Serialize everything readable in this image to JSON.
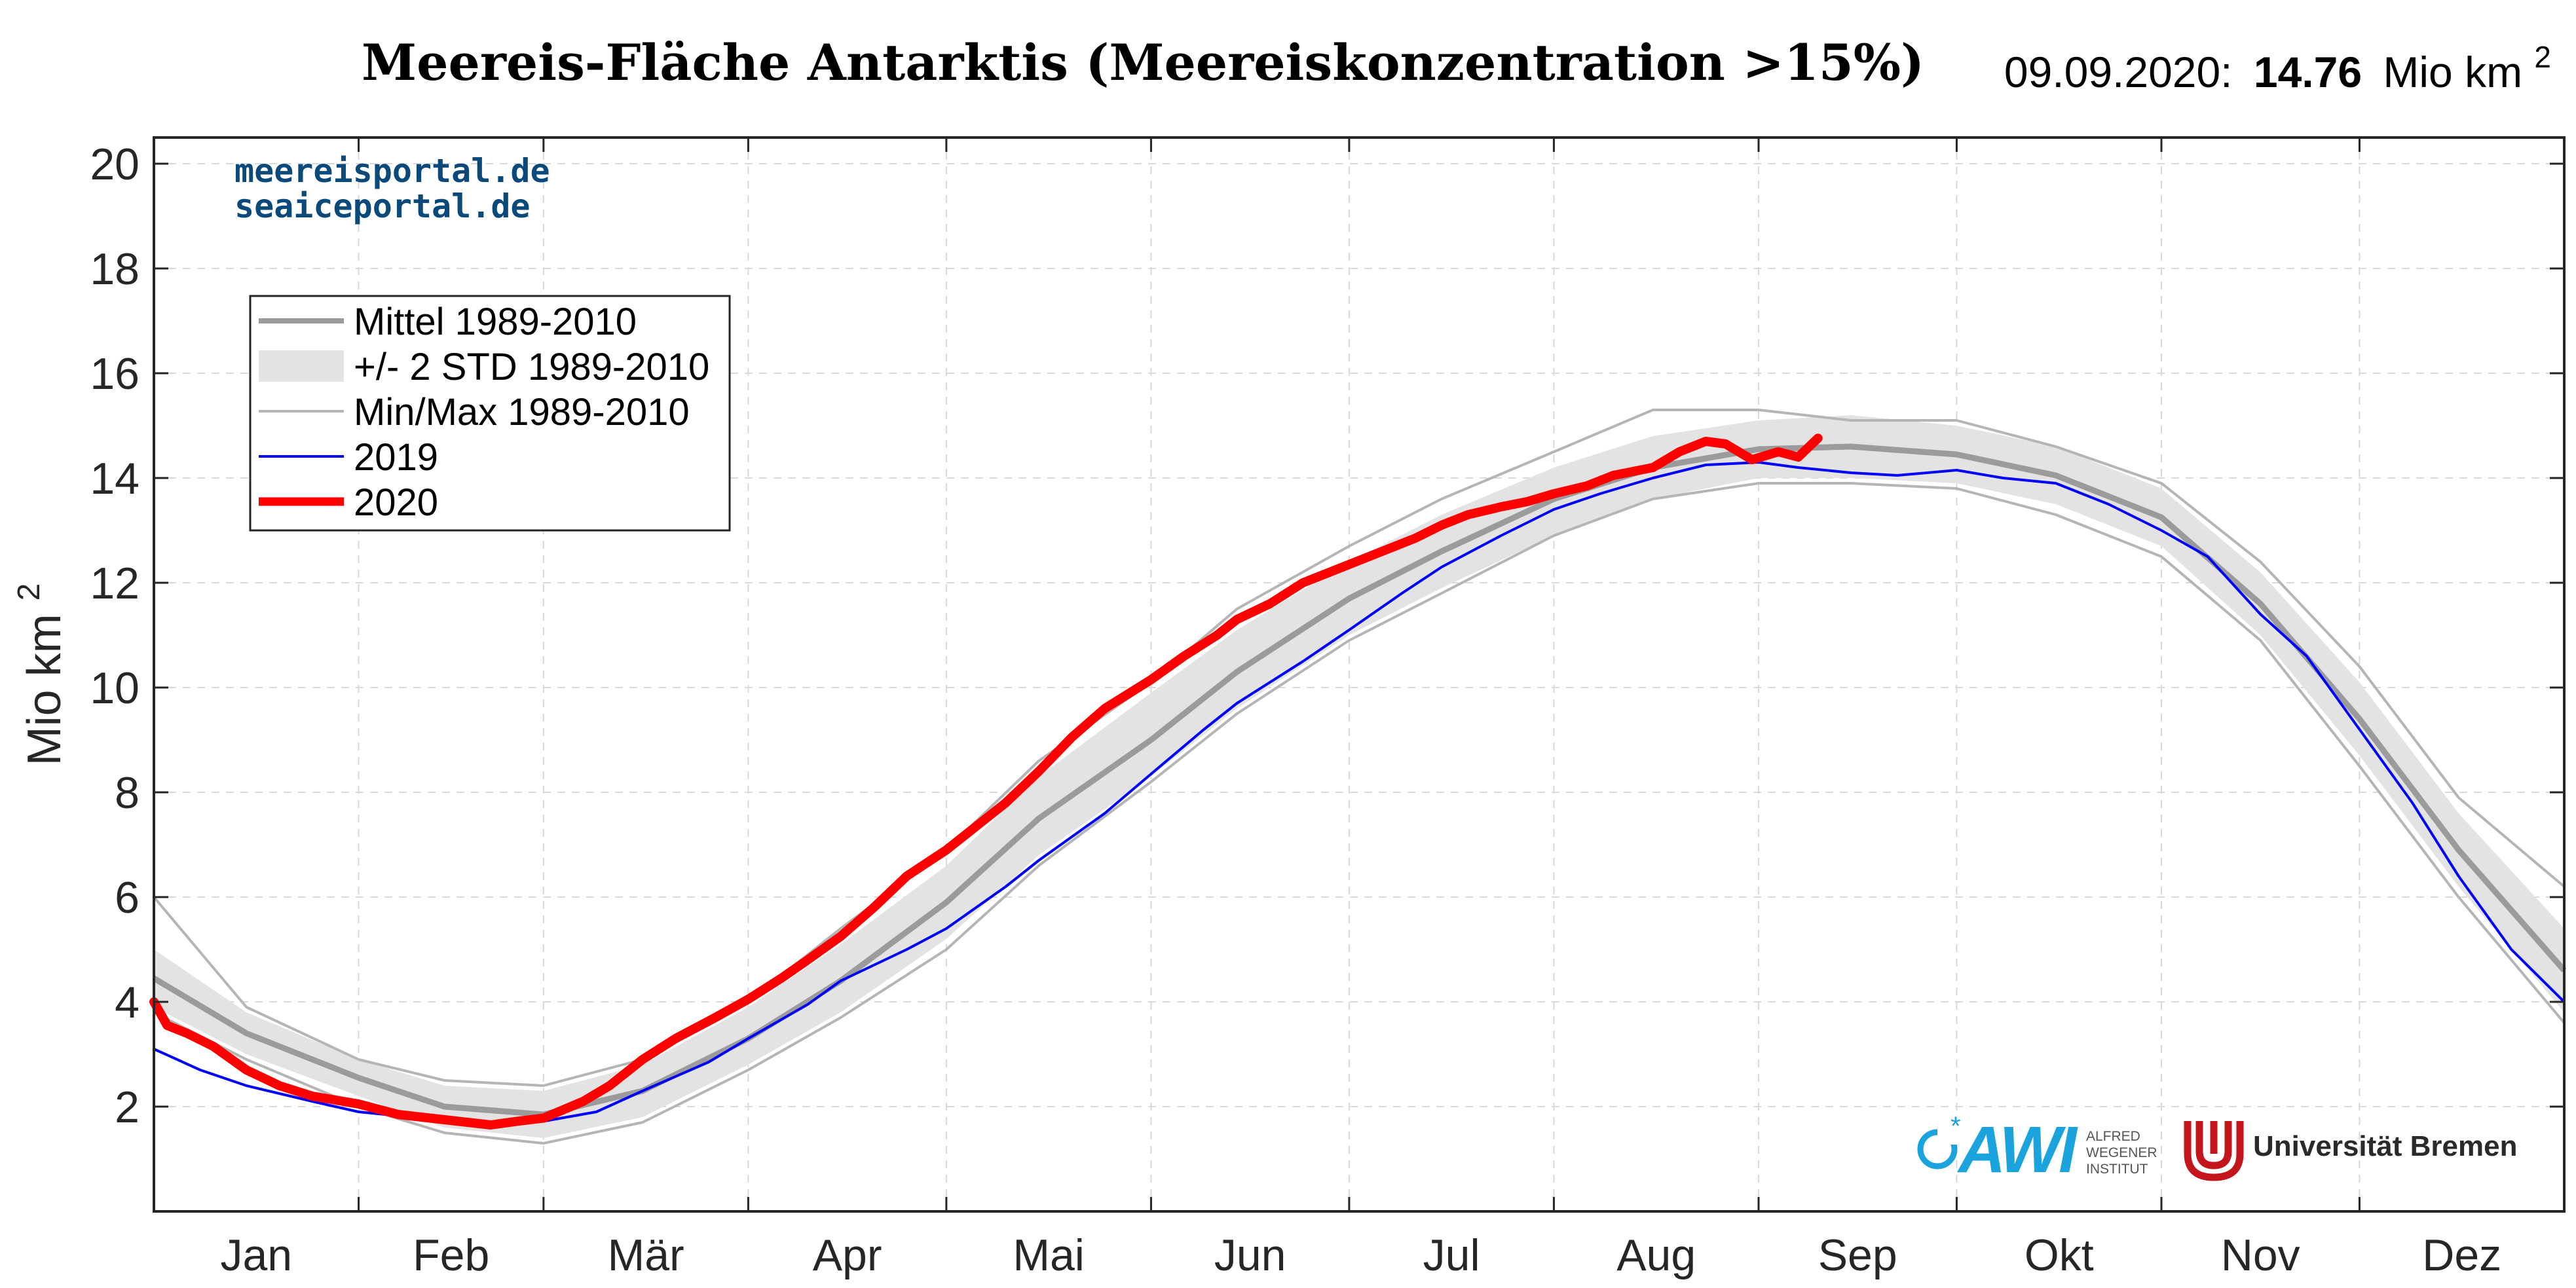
{
  "header": {
    "title": "Meereis-Fläche Antarktis (Meereiskonzentration >15%)",
    "date_label": "09.09.2020:",
    "value": "14.76",
    "unit": "Mio km",
    "unit_exp": "2"
  },
  "watermark": {
    "line1": "meereisportal.de",
    "line2": "seaiceportal.de",
    "color": "#0a4a7a"
  },
  "logos": {
    "awi_text": "AWI",
    "awi_lines": [
      "ALFRED",
      "WEGENER",
      "INSTITUT"
    ],
    "awi_color": "#1aa3dc",
    "uni_text": "Universität Bremen",
    "uni_color": "#c4151c"
  },
  "chart_data": {
    "type": "line",
    "title": "Meereis-Fläche Antarktis (Meereiskonzentration >15%)",
    "ylabel": "Mio km",
    "ylabel_exp": "2",
    "xlabel": "",
    "xlim": [
      1,
      366
    ],
    "ylim": [
      0,
      20.5
    ],
    "yticks": [
      2,
      4,
      6,
      8,
      10,
      12,
      14,
      16,
      18,
      20
    ],
    "month_labels": [
      "Jan",
      "Feb",
      "Mär",
      "Apr",
      "Mai",
      "Jun",
      "Jul",
      "Aug",
      "Sep",
      "Okt",
      "Nov",
      "Dez"
    ],
    "month_boundaries": [
      1,
      32,
      60,
      91,
      121,
      152,
      182,
      213,
      244,
      274,
      305,
      335,
      366
    ],
    "grid": true,
    "legend": {
      "position": "top-left",
      "entries": [
        {
          "label": "Mittel 1989-2010",
          "style": "mean",
          "color": "#9b9b9b"
        },
        {
          "label": "+/- 2 STD 1989-2010",
          "style": "band",
          "color": "#e3e3e3"
        },
        {
          "label": "Min/Max 1989-2010",
          "style": "minmax",
          "color": "#b5b5b5"
        },
        {
          "label": "2019",
          "style": "line",
          "color": "#0000ff"
        },
        {
          "label": "2020",
          "style": "thick",
          "color": "#ff0000"
        }
      ]
    },
    "series": [
      {
        "name": "Mittel 1989-2010",
        "x": [
          1,
          15,
          32,
          45,
          60,
          75,
          91,
          105,
          121,
          135,
          152,
          165,
          182,
          196,
          213,
          228,
          244,
          258,
          274,
          289,
          305,
          320,
          335,
          350,
          366
        ],
        "values": [
          4.45,
          3.4,
          2.55,
          2.0,
          1.85,
          2.3,
          3.3,
          4.4,
          5.9,
          7.5,
          9.0,
          10.3,
          11.7,
          12.6,
          13.6,
          14.2,
          14.55,
          14.6,
          14.45,
          14.05,
          13.25,
          11.6,
          9.4,
          6.9,
          4.6
        ]
      },
      {
        "name": "STD upper",
        "x": [
          1,
          15,
          32,
          45,
          60,
          75,
          91,
          105,
          121,
          135,
          152,
          165,
          182,
          196,
          213,
          228,
          244,
          258,
          274,
          289,
          305,
          320,
          335,
          350,
          366
        ],
        "values": [
          5.0,
          3.8,
          2.9,
          2.4,
          2.3,
          2.8,
          3.9,
          5.1,
          6.6,
          8.3,
          9.9,
          11.1,
          12.4,
          13.3,
          14.2,
          14.8,
          15.1,
          15.2,
          15.0,
          14.6,
          13.8,
          12.2,
          10.1,
          7.6,
          5.4
        ]
      },
      {
        "name": "STD lower",
        "x": [
          1,
          15,
          32,
          45,
          60,
          75,
          91,
          105,
          121,
          135,
          152,
          165,
          182,
          196,
          213,
          228,
          244,
          258,
          274,
          289,
          305,
          320,
          335,
          350,
          366
        ],
        "values": [
          3.9,
          3.0,
          2.2,
          1.6,
          1.4,
          1.8,
          2.8,
          3.8,
          5.2,
          6.8,
          8.3,
          9.6,
          11.0,
          11.9,
          12.9,
          13.6,
          14.0,
          14.0,
          13.9,
          13.5,
          12.7,
          11.0,
          8.7,
          6.2,
          3.8
        ]
      },
      {
        "name": "Min/Max upper",
        "x": [
          1,
          15,
          32,
          45,
          60,
          75,
          91,
          105,
          121,
          135,
          152,
          165,
          182,
          196,
          213,
          228,
          244,
          258,
          274,
          289,
          305,
          320,
          335,
          350,
          366
        ],
        "values": [
          6.0,
          3.9,
          2.9,
          2.5,
          2.4,
          2.9,
          4.0,
          5.4,
          6.9,
          8.6,
          10.1,
          11.5,
          12.7,
          13.6,
          14.5,
          15.3,
          15.3,
          15.1,
          15.1,
          14.6,
          13.9,
          12.4,
          10.4,
          7.9,
          6.2
        ]
      },
      {
        "name": "Min/Max lower",
        "x": [
          1,
          15,
          32,
          45,
          60,
          75,
          91,
          105,
          121,
          135,
          152,
          165,
          182,
          196,
          213,
          228,
          244,
          258,
          274,
          289,
          305,
          320,
          335,
          350,
          366
        ],
        "values": [
          3.8,
          2.9,
          2.0,
          1.5,
          1.3,
          1.7,
          2.7,
          3.7,
          5.0,
          6.6,
          8.2,
          9.5,
          10.9,
          11.8,
          12.9,
          13.6,
          13.9,
          13.9,
          13.8,
          13.3,
          12.5,
          10.9,
          8.5,
          6.0,
          3.6
        ]
      },
      {
        "name": "2019",
        "x": [
          1,
          8,
          15,
          25,
          32,
          40,
          45,
          52,
          60,
          68,
          75,
          85,
          91,
          100,
          105,
          115,
          121,
          130,
          135,
          145,
          152,
          160,
          165,
          175,
          182,
          190,
          196,
          205,
          213,
          220,
          228,
          236,
          244,
          250,
          258,
          265,
          274,
          281,
          289,
          297,
          305,
          312,
          320,
          327,
          335,
          343,
          350,
          358,
          366
        ],
        "values": [
          3.1,
          2.7,
          2.4,
          2.1,
          1.9,
          1.8,
          1.75,
          1.7,
          1.72,
          1.9,
          2.3,
          2.85,
          3.3,
          3.95,
          4.4,
          5.0,
          5.4,
          6.2,
          6.7,
          7.6,
          8.35,
          9.2,
          9.7,
          10.5,
          11.1,
          11.8,
          12.3,
          12.9,
          13.4,
          13.7,
          14.0,
          14.25,
          14.3,
          14.2,
          14.1,
          14.05,
          14.15,
          14.0,
          13.9,
          13.5,
          13.0,
          12.5,
          11.4,
          10.6,
          9.2,
          7.8,
          6.4,
          5.0,
          4.0
        ]
      },
      {
        "name": "2020",
        "x": [
          1,
          3,
          6,
          10,
          15,
          20,
          25,
          32,
          38,
          45,
          52,
          56,
          60,
          66,
          70,
          75,
          80,
          86,
          91,
          96,
          100,
          105,
          110,
          115,
          121,
          125,
          130,
          135,
          140,
          145,
          152,
          157,
          162,
          165,
          170,
          175,
          182,
          187,
          192,
          196,
          200,
          205,
          209,
          213,
          218,
          222,
          228,
          232,
          236,
          239,
          243,
          247,
          250,
          253
        ],
        "values": [
          4.0,
          3.55,
          3.4,
          3.15,
          2.7,
          2.4,
          2.2,
          2.05,
          1.85,
          1.75,
          1.65,
          1.72,
          1.78,
          2.1,
          2.4,
          2.9,
          3.3,
          3.7,
          4.05,
          4.45,
          4.8,
          5.25,
          5.8,
          6.4,
          6.9,
          7.3,
          7.8,
          8.4,
          9.05,
          9.6,
          10.15,
          10.6,
          11.0,
          11.3,
          11.6,
          12.0,
          12.35,
          12.6,
          12.85,
          13.1,
          13.3,
          13.45,
          13.55,
          13.7,
          13.85,
          14.05,
          14.2,
          14.5,
          14.7,
          14.65,
          14.35,
          14.5,
          14.4,
          14.76
        ]
      }
    ]
  }
}
